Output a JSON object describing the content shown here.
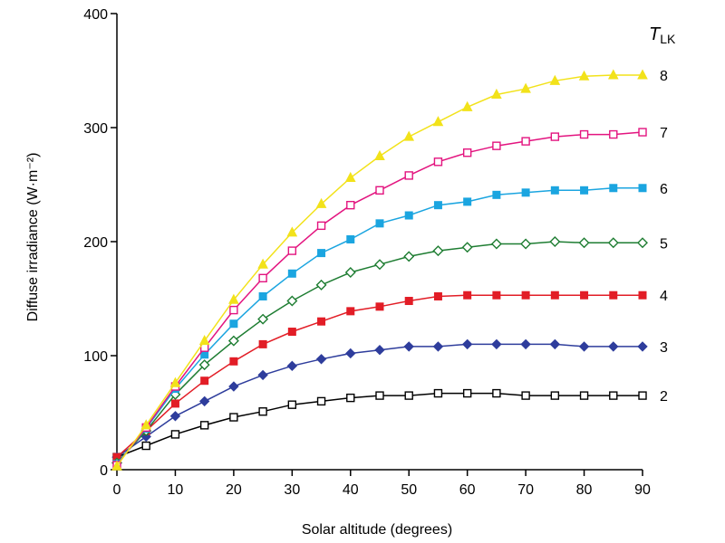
{
  "chart_data": {
    "type": "line",
    "title": "",
    "xlabel": "Solar altitude (degrees)",
    "ylabel": "Diffuse irradiance (W·m⁻²)",
    "xlim": [
      0,
      90
    ],
    "ylim": [
      0,
      400
    ],
    "xticks": [
      "0",
      "10",
      "20",
      "30",
      "40",
      "50",
      "60",
      "70",
      "80",
      "90"
    ],
    "yticks": [
      "0",
      "100",
      "200",
      "300",
      "400"
    ],
    "legend_title_main": "T",
    "legend_title_sub": "LK",
    "x": [
      0,
      5,
      10,
      15,
      20,
      25,
      30,
      35,
      40,
      45,
      50,
      55,
      60,
      65,
      70,
      75,
      80,
      85,
      90
    ],
    "series": [
      {
        "name": "2",
        "color": "#000000",
        "marker": "square-open",
        "values": [
          11,
          21,
          31,
          39,
          46,
          51,
          57,
          60,
          63,
          65,
          65,
          67,
          67,
          67,
          65,
          65,
          65,
          65,
          65
        ]
      },
      {
        "name": "3",
        "color": "#2e3d9c",
        "marker": "diamond-filled",
        "values": [
          11,
          29,
          47,
          60,
          73,
          83,
          91,
          97,
          102,
          105,
          108,
          108,
          110,
          110,
          110,
          110,
          108,
          108,
          108
        ]
      },
      {
        "name": "4",
        "color": "#e21d26",
        "marker": "square-filled",
        "values": [
          11,
          34,
          58,
          78,
          95,
          110,
          121,
          130,
          139,
          143,
          148,
          152,
          153,
          153,
          153,
          153,
          153,
          153,
          153
        ]
      },
      {
        "name": "5",
        "color": "#1e7d32",
        "marker": "diamond-open",
        "values": [
          6,
          34,
          66,
          92,
          113,
          132,
          148,
          162,
          173,
          180,
          187,
          192,
          195,
          198,
          198,
          200,
          199,
          199,
          199
        ]
      },
      {
        "name": "6",
        "color": "#1ba5e0",
        "marker": "square-filled",
        "values": [
          5,
          36,
          71,
          101,
          128,
          152,
          172,
          190,
          202,
          216,
          223,
          232,
          235,
          241,
          243,
          245,
          245,
          247,
          247
        ]
      },
      {
        "name": "7",
        "color": "#e3147f",
        "marker": "square-open",
        "values": [
          4,
          37,
          73,
          107,
          140,
          168,
          192,
          214,
          232,
          245,
          258,
          270,
          278,
          284,
          288,
          292,
          294,
          294,
          296
        ]
      },
      {
        "name": "8",
        "color": "#f2e21a",
        "marker": "triangle-filled",
        "values": [
          3,
          39,
          76,
          113,
          149,
          180,
          208,
          233,
          256,
          275,
          292,
          305,
          318,
          329,
          334,
          341,
          345,
          346,
          346
        ]
      }
    ]
  }
}
